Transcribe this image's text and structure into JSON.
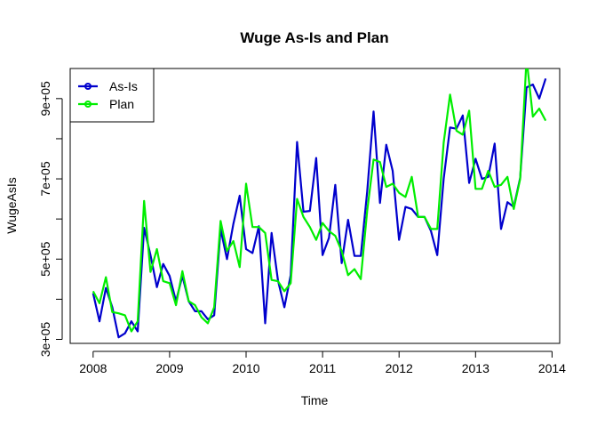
{
  "chart_data": {
    "type": "line",
    "title": "Wuge As-Is and Plan",
    "xlabel": "Time",
    "ylabel": "WugeAsIs",
    "xlim": [
      2007.7,
      2014.1
    ],
    "ylim": [
      290000,
      975000
    ],
    "x_ticks": [
      2008,
      2009,
      2010,
      2011,
      2012,
      2013,
      2014
    ],
    "x_tick_labels": [
      "2008",
      "2009",
      "2010",
      "2011",
      "2012",
      "2013",
      "2014"
    ],
    "y_ticks": [
      300000,
      500000,
      700000,
      900000
    ],
    "y_tick_labels": [
      "3e+05",
      "5e+05",
      "7e+05",
      "9e+05"
    ],
    "y_minor_ticks": [
      400000,
      600000,
      800000
    ],
    "grid": false,
    "legend_position": "top-left",
    "x_start": 2008,
    "x_step": 0.08333,
    "series": [
      {
        "name": "As-Is",
        "color": "#0000CD",
        "values": [
          415000,
          345000,
          428000,
          380000,
          305000,
          315000,
          345000,
          320000,
          578000,
          510000,
          430000,
          488000,
          458000,
          395000,
          458000,
          395000,
          370000,
          370000,
          350000,
          360000,
          575000,
          500000,
          588000,
          658000,
          525000,
          515000,
          582000,
          340000,
          565000,
          447000,
          380000,
          460000,
          792000,
          618000,
          620000,
          752000,
          510000,
          553000,
          685000,
          490000,
          598000,
          508000,
          508000,
          668000,
          868000,
          640000,
          785000,
          720000,
          548000,
          630000,
          625000,
          605000,
          605000,
          570000,
          510000,
          700000,
          828000,
          825000,
          858000,
          690000,
          750000,
          700000,
          705000,
          788000,
          575000,
          642000,
          630000,
          702000,
          928000,
          935000,
          900000,
          950000
        ]
      },
      {
        "name": "Plan",
        "color": "#00EE00",
        "values": [
          420000,
          390000,
          455000,
          368000,
          365000,
          360000,
          320000,
          345000,
          645000,
          468000,
          525000,
          445000,
          440000,
          385000,
          470000,
          395000,
          385000,
          355000,
          340000,
          380000,
          595000,
          520000,
          545000,
          480000,
          688000,
          580000,
          580000,
          565000,
          448000,
          445000,
          420000,
          440000,
          650000,
          605000,
          580000,
          548000,
          590000,
          570000,
          558000,
          520000,
          460000,
          475000,
          450000,
          620000,
          748000,
          742000,
          680000,
          688000,
          665000,
          655000,
          705000,
          605000,
          605000,
          575000,
          575000,
          790000,
          910000,
          820000,
          810000,
          870000,
          675000,
          675000,
          720000,
          680000,
          685000,
          705000,
          625000,
          700000,
          1000000,
          855000,
          875000,
          845000
        ]
      }
    ]
  }
}
